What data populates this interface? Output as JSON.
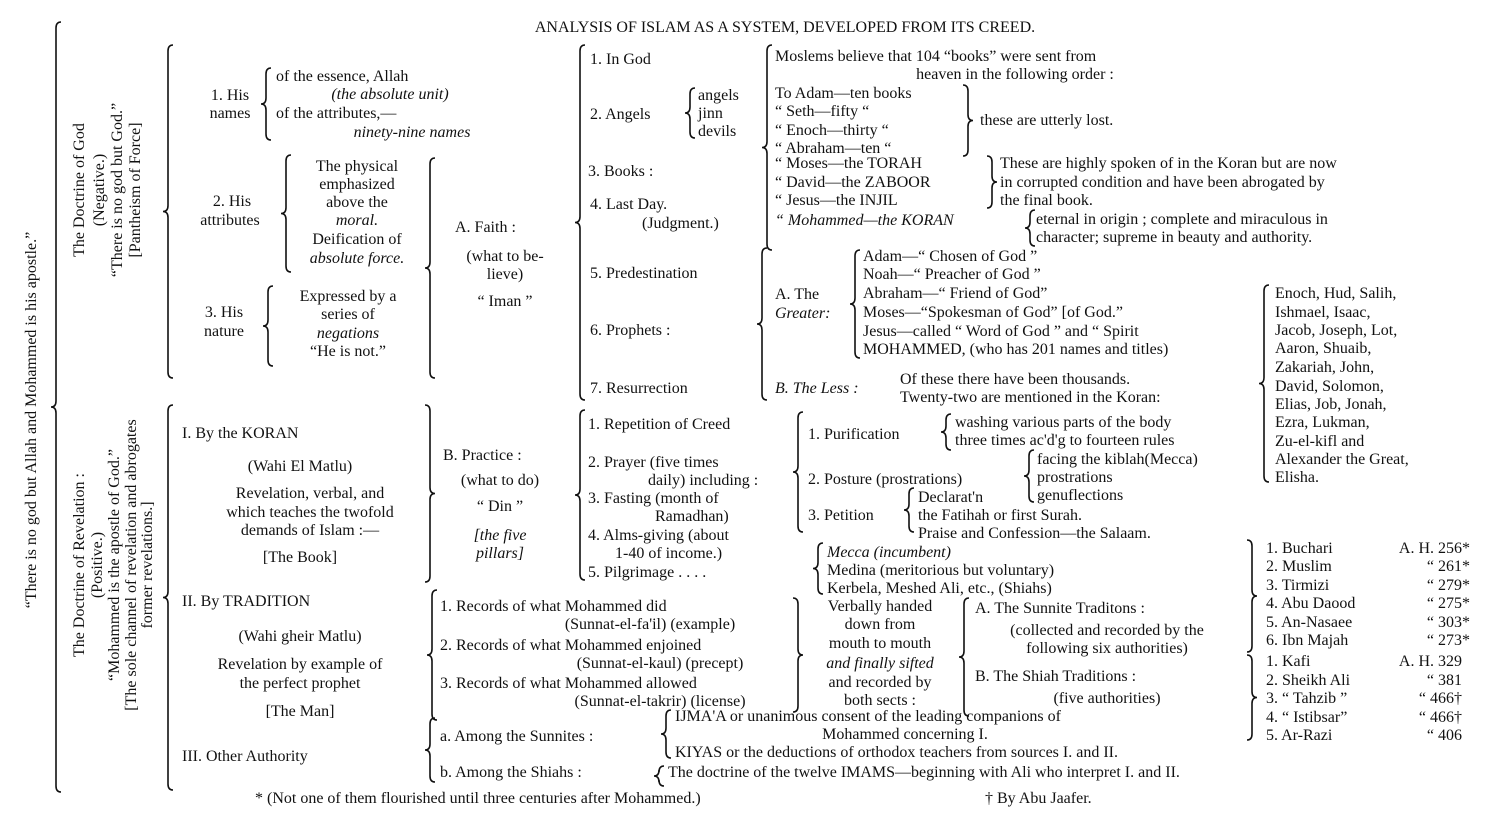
{
  "title": "ANALYSIS OF ISLAM AS A SYSTEM, DEVELOPED FROM ITS CREED.",
  "creed": "“There is no god but Allah and Mohammed is his apostle.”",
  "god": {
    "title": "The Doctrine of God",
    "sub": [
      "(Negative.)",
      "“There is no god but God.”",
      "[Pantheism of Force]"
    ]
  },
  "revelation_doctrine": {
    "title": "The Doctrine of Revelation :",
    "sub": [
      "(Positive.)",
      "“Mohammed is the apostle of God.”",
      "[The sole channel of revelation and abrogates",
      "former revelations.]"
    ]
  },
  "names": {
    "label": [
      "1. His",
      "names"
    ],
    "items": [
      "of the essence, Allah",
      "(the absolute unit)",
      "of the attributes,—",
      "ninety-nine names"
    ]
  },
  "attributes": {
    "label": [
      "2.   His",
      "attributes"
    ],
    "items": [
      "The physical",
      "emphasized",
      "above the",
      "moral.",
      "Deification of",
      "absolute force."
    ]
  },
  "nature": {
    "label": [
      "3. His",
      "nature"
    ],
    "items": [
      "Expressed by a",
      "series of",
      "negations",
      "“He is not.”"
    ]
  },
  "koran": {
    "title": "I.  By the KORAN",
    "sub": "(Wahi El Matlu)",
    "desc": [
      "Revelation, verbal, and",
      "which teaches the twofold",
      "demands of Islam :—"
    ],
    "tag": "[The Book]"
  },
  "tradition_src": {
    "title": "II. By TRADITION",
    "sub": "(Wahi gheir Matlu)",
    "desc": [
      "Revelation by example of",
      "the perfect prophet"
    ],
    "tag": "[The Man]"
  },
  "other_authority": {
    "title": "III. Other Authority"
  },
  "faith": {
    "title": "A. Faith :",
    "sub": [
      "(what to be-",
      "lieve)"
    ],
    "word": "“ Iman ”"
  },
  "practice": {
    "title": "B. Practice :",
    "sub": "(what to do)",
    "word": "“ Din ”",
    "note": [
      "[the five",
      "pillars]"
    ]
  },
  "faith_items": [
    "1.  In God",
    "2.  Angels",
    "3.  Books :",
    "4.  Last Day.",
    "(Judgment.)",
    "5.  Predestination",
    "6.  Prophets :",
    "7.  Resurrection"
  ],
  "angels": [
    "angels",
    "jinn",
    "devils"
  ],
  "books": {
    "intro": [
      "Moslems believe that 104 “books” were sent from",
      "heaven in the following order :"
    ],
    "lost": [
      "To Adam—ten books",
      "“  Seth—fifty      “",
      "“  Enoch—thirty  “",
      "“  Abraham—ten  “"
    ],
    "lost_note": "these are utterly lost.",
    "corrupted": [
      "“  Moses—the TORAH",
      "“  David—the ZABOOR",
      "“  Jesus—the INJIL"
    ],
    "corrupted_note": [
      "These are highly spoken of in the Koran but are now",
      "in corrupted condition and have been abrogated by",
      "the final book."
    ],
    "final": "“  Mohammed—the KORAN",
    "final_note": [
      "eternal in origin ; complete and miraculous in",
      "character; supreme in beauty and authority."
    ]
  },
  "prophets": {
    "greater_label": [
      "A.  The",
      "Greater:"
    ],
    "greater": [
      "Adam—“ Chosen of God ”",
      "Noah—“ Preacher of God ”",
      "Abraham—“ Friend of God”",
      "Moses—“Spokesman of God”      [of God.”",
      "Jesus—called “ Word of God ” and “ Spirit",
      "MOHAMMED, (who has 201 names and titles)"
    ],
    "less_label": "B.  The Less :",
    "less": [
      "Of these there have been thousands.",
      "Twenty-two are mentioned in the Koran:"
    ],
    "named": [
      "Enoch, Hud, Salih,",
      "Ishmael, Isaac,",
      "Jacob, Joseph, Lot,",
      "Aaron, Shuaib,",
      "Zakariah, John,",
      "David, Solomon,",
      "Elias, Job, Jonah,",
      "Ezra, Lukman,",
      "Zu-el-kifl and",
      "Alexander the Great,",
      "Elisha."
    ]
  },
  "pillars": [
    "1.  Repetition of Creed",
    "2.  Prayer  (five times",
    "daily) including :",
    "3.  Fasting  (month of",
    "Ramadhan)",
    "4.  Alms-giving  (about",
    "1-40 of income.)",
    "5.  Pilgrimage  .  .  .  ."
  ],
  "prayer": {
    "purification": "1.  Purification",
    "purification_items": [
      "washing various parts of the body",
      "three times ac'd'g to fourteen rules"
    ],
    "posture": "2.  Posture (prostrations)",
    "posture_items": [
      "facing the kiblah(Mecca)",
      "prostrations",
      "genuflections"
    ],
    "petition": "3.  Petition",
    "petition_items": [
      "Declarat'n",
      "the Fatihah or first Surah.",
      "Praise and Confession—the Salaam."
    ]
  },
  "pilgrimage": [
    "Mecca (incumbent)",
    "Medina (meritorious but voluntary)",
    "Kerbela, Meshed Ali, etc., (Shiahs)"
  ],
  "records": [
    "1.  Records of what Mohammed did",
    "(Sunnat-el-fa'il)  (example)",
    "2.  Records of what Mohammed enjoined",
    "(Sunnat-el-kaul)  (precept)",
    "3.  Records of what Mohammed allowed",
    "(Sunnat-el-takrir)  (license)"
  ],
  "handed": [
    "Verbally handed",
    "down from",
    "mouth to mouth",
    "and finally sifted",
    "and recorded by",
    "both sects :"
  ],
  "sunnite": [
    "A.  The Sunnite Traditons :",
    "(collected and recorded by the",
    "following six authorities)"
  ],
  "shiah": [
    "B.  The Shiah Traditions :",
    "(five authorities)"
  ],
  "sunnite_authorities": [
    {
      "name": "1.  Buchari",
      "date": "A. H. 256*"
    },
    {
      "name": "2.  Muslim",
      "date": "“   261*"
    },
    {
      "name": "3.  Tirmizi",
      "date": "“   279*"
    },
    {
      "name": "4.  Abu Daood",
      "date": "“   275*"
    },
    {
      "name": "5.  An-Nasaee",
      "date": "“   303*"
    },
    {
      "name": "6.  Ibn Majah",
      "date": "“   273*"
    }
  ],
  "shiah_authorities": [
    {
      "name": "1.  Kafi",
      "date": "A. H. 329"
    },
    {
      "name": "2.  Sheikh Ali",
      "date": "“   381"
    },
    {
      "name": "3.  “ Tahzib ”",
      "date": "“   466†"
    },
    {
      "name": "4.  “ Istibsar”",
      "date": "“   466†"
    },
    {
      "name": "5.  Ar-Razi",
      "date": "“   406"
    }
  ],
  "sunnites": {
    "label": "a.   Among the Sunnites :",
    "items": [
      "IJMA'A or unanimous consent of the leading companions of",
      "Mohammed concerning I.",
      "KIYAS or the deductions of orthodox teachers from sources I. and II."
    ]
  },
  "shiahs": {
    "label": "b.   Among the Shiahs :",
    "item": "The doctrine of the twelve IMAMS—beginning with Ali who interpret I. and II."
  },
  "footnotes": [
    "* (Not one of them flourished until three centuries after Mohammed.)",
    "† By Abu Jaafer."
  ]
}
